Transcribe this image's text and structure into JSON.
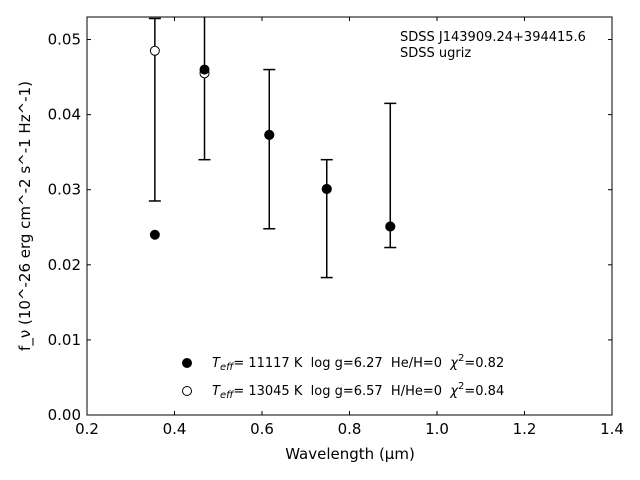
{
  "chart_data": {
    "type": "scatter",
    "xlabel": "Wavelength (μm)",
    "ylabel": "f_ν (10^-26 erg cm^-2 s^-1 Hz^-1)",
    "xlim": [
      0.2,
      1.4
    ],
    "ylim": [
      0.0,
      0.053
    ],
    "xticks": [
      0.2,
      0.4,
      0.6,
      0.8,
      1.0,
      1.2,
      1.4
    ],
    "xtick_labels": [
      "0.2",
      "0.4",
      "0.6",
      "0.8",
      "1.0",
      "1.2",
      "1.4"
    ],
    "yticks": [
      0.0,
      0.01,
      0.02,
      0.03,
      0.04,
      0.05
    ],
    "ytick_labels": [
      "0.00",
      "0.01",
      "0.02",
      "0.03",
      "0.04",
      "0.05"
    ],
    "grid": false,
    "legend_position": "bottom-center",
    "annotations": [
      "SDSS J143909.24+394415.6",
      "SDSS ugriz"
    ],
    "observed": {
      "x": [
        0.3551,
        0.4686,
        0.6166,
        0.748,
        0.8932
      ],
      "y_low": [
        0.0285,
        0.034,
        0.0248,
        0.0183,
        0.0223
      ],
      "y_high": [
        0.0528,
        0.0535,
        0.046,
        0.034,
        0.0415
      ]
    },
    "series": [
      {
        "marker": "filled",
        "label_parts": {
          "T": "T",
          "eff": "eff",
          "rest": "= 11117 K  log g=6.27  He/H=0  ",
          "chi": "χ",
          "two": "2",
          "chi_val": "=0.82"
        },
        "x": [
          0.3551,
          0.4686,
          0.6166,
          0.748,
          0.8932
        ],
        "y": [
          0.024,
          0.046,
          0.0373,
          0.0301,
          0.0251
        ]
      },
      {
        "marker": "open",
        "label_parts": {
          "T": "T",
          "eff": "eff",
          "rest": "= 13045 K  log g=6.57  H/He=0  ",
          "chi": "χ",
          "two": "2",
          "chi_val": "=0.84"
        },
        "x": [
          0.3551,
          0.4686,
          0.6166,
          0.748,
          0.8932
        ],
        "y": [
          0.0485,
          0.0455,
          0.0373,
          0.0301,
          0.0251
        ]
      }
    ]
  }
}
